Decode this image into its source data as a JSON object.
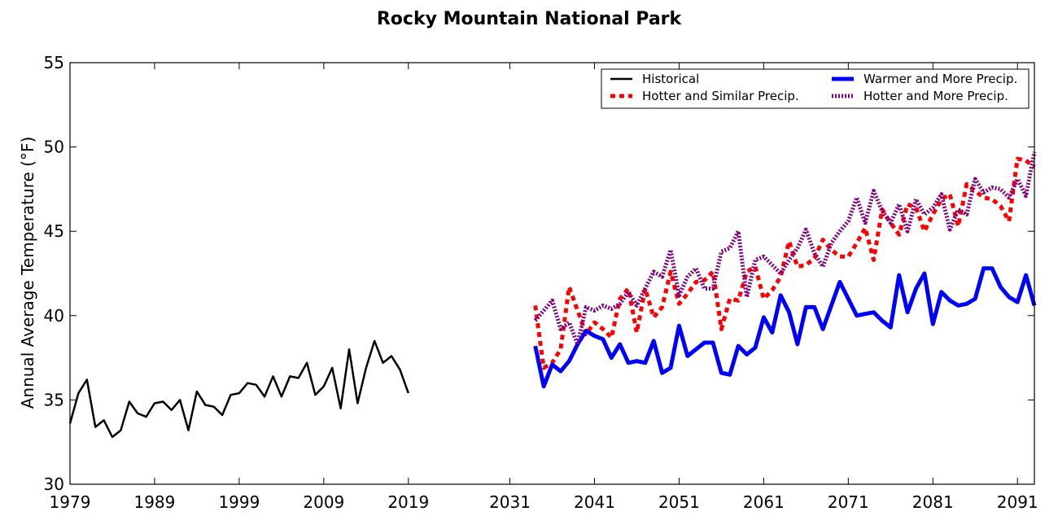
{
  "chart_data": {
    "type": "line",
    "title": "Rocky Mountain National Park",
    "xlabel": "",
    "ylabel": "Annual Average Temperature (°F)",
    "xlim": [
      1979,
      2093
    ],
    "ylim": [
      30,
      55
    ],
    "xticks": [
      1979,
      1989,
      1999,
      2009,
      2019,
      2031,
      2041,
      2051,
      2061,
      2071,
      2081,
      2091
    ],
    "yticks": [
      30,
      35,
      40,
      45,
      50,
      55
    ],
    "grid": false,
    "legend": {
      "position": "top-right",
      "columns": 2
    },
    "series": [
      {
        "name": "Historical",
        "color": "#000000",
        "style": "solid",
        "x": [
          1979,
          1980,
          1981,
          1982,
          1983,
          1984,
          1985,
          1986,
          1987,
          1988,
          1989,
          1990,
          1991,
          1992,
          1993,
          1994,
          1995,
          1996,
          1997,
          1998,
          1999,
          2000,
          2001,
          2002,
          2003,
          2004,
          2005,
          2006,
          2007,
          2008,
          2009,
          2010,
          2011,
          2012,
          2013,
          2014,
          2015,
          2016,
          2017,
          2018,
          2019
        ],
        "y": [
          33.6,
          35.4,
          36.2,
          33.4,
          33.8,
          32.8,
          33.2,
          34.9,
          34.2,
          34.0,
          34.8,
          34.9,
          34.4,
          35.0,
          33.2,
          35.5,
          34.7,
          34.6,
          34.1,
          35.3,
          35.4,
          36.0,
          35.9,
          35.2,
          36.4,
          35.2,
          36.4,
          36.3,
          37.2,
          35.3,
          35.8,
          36.9,
          34.5,
          38.0,
          34.8,
          36.9,
          38.5,
          37.2,
          37.6,
          36.8,
          35.4
        ]
      },
      {
        "name": "Hotter and Similar Precip.",
        "color": "#ff0000",
        "style": "dotted",
        "x": [
          2034,
          2035,
          2036,
          2037,
          2038,
          2039,
          2040,
          2041,
          2042,
          2043,
          2044,
          2045,
          2046,
          2047,
          2048,
          2049,
          2050,
          2051,
          2052,
          2053,
          2054,
          2055,
          2056,
          2057,
          2058,
          2059,
          2060,
          2061,
          2062,
          2063,
          2064,
          2065,
          2066,
          2067,
          2068,
          2069,
          2070,
          2071,
          2072,
          2073,
          2074,
          2075,
          2076,
          2077,
          2078,
          2079,
          2080,
          2081,
          2082,
          2083,
          2084,
          2085,
          2086,
          2087,
          2088,
          2089,
          2090,
          2091,
          2092,
          2093
        ],
        "y": [
          40.6,
          36.9,
          37.2,
          38.0,
          41.7,
          40.3,
          38.9,
          39.6,
          39.2,
          38.7,
          41.0,
          41.6,
          39.0,
          41.6,
          39.9,
          40.5,
          42.6,
          40.7,
          41.3,
          42.0,
          42.1,
          42.6,
          39.2,
          41.0,
          40.9,
          42.6,
          42.9,
          41.0,
          41.5,
          42.3,
          44.4,
          42.9,
          43.0,
          43.4,
          44.5,
          43.9,
          43.5,
          43.5,
          44.3,
          45.2,
          43.3,
          46.3,
          45.5,
          44.8,
          46.6,
          46.4,
          45.0,
          46.0,
          46.9,
          47.2,
          45.3,
          47.8,
          47.4,
          47.0,
          46.9,
          46.5,
          45.6,
          49.3,
          49.2,
          48.8
        ]
      },
      {
        "name": "Warmer and More Precip.",
        "color": "#0000ff",
        "style": "solid-thick",
        "x": [
          2034,
          2035,
          2036,
          2037,
          2038,
          2039,
          2040,
          2041,
          2042,
          2043,
          2044,
          2045,
          2046,
          2047,
          2048,
          2049,
          2050,
          2051,
          2052,
          2053,
          2054,
          2055,
          2056,
          2057,
          2058,
          2059,
          2060,
          2061,
          2062,
          2063,
          2064,
          2065,
          2066,
          2067,
          2068,
          2069,
          2070,
          2071,
          2072,
          2073,
          2074,
          2075,
          2076,
          2077,
          2078,
          2079,
          2080,
          2081,
          2082,
          2083,
          2084,
          2085,
          2086,
          2087,
          2088,
          2089,
          2090,
          2091,
          2092,
          2093
        ],
        "y": [
          38.2,
          35.8,
          37.1,
          36.7,
          37.3,
          38.3,
          39.1,
          38.8,
          38.6,
          37.5,
          38.3,
          37.2,
          37.3,
          37.2,
          38.5,
          36.6,
          36.9,
          39.4,
          37.6,
          38.0,
          38.4,
          38.4,
          36.6,
          36.5,
          38.2,
          37.7,
          38.1,
          39.9,
          39.0,
          41.2,
          40.2,
          38.3,
          40.5,
          40.5,
          39.2,
          40.6,
          42.0,
          41.0,
          40.0,
          40.1,
          40.2,
          39.7,
          39.3,
          42.4,
          40.2,
          41.6,
          42.5,
          39.5,
          41.4,
          40.9,
          40.6,
          40.7,
          41.0,
          42.8,
          42.8,
          41.7,
          41.1,
          40.8,
          42.4,
          40.6
        ]
      },
      {
        "name": "Hotter and More Precip.",
        "color": "#800080",
        "style": "dashed-thick",
        "x": [
          2034,
          2035,
          2036,
          2037,
          2038,
          2039,
          2040,
          2041,
          2042,
          2043,
          2044,
          2045,
          2046,
          2047,
          2048,
          2049,
          2050,
          2051,
          2052,
          2053,
          2054,
          2055,
          2056,
          2057,
          2058,
          2059,
          2060,
          2061,
          2062,
          2063,
          2064,
          2065,
          2066,
          2067,
          2068,
          2069,
          2070,
          2071,
          2072,
          2073,
          2074,
          2075,
          2076,
          2077,
          2078,
          2079,
          2080,
          2081,
          2082,
          2083,
          2084,
          2085,
          2086,
          2087,
          2088,
          2089,
          2090,
          2091,
          2092,
          2093
        ],
        "y": [
          39.7,
          40.3,
          40.9,
          39.2,
          39.6,
          38.3,
          40.5,
          40.3,
          40.6,
          40.4,
          40.7,
          41.4,
          40.6,
          41.6,
          42.6,
          42.3,
          43.9,
          41.2,
          42.3,
          42.8,
          41.6,
          41.6,
          43.8,
          44.0,
          45.0,
          41.1,
          43.3,
          43.5,
          43.0,
          42.5,
          43.3,
          44.0,
          45.1,
          43.7,
          42.9,
          44.3,
          45.0,
          45.6,
          47.0,
          45.5,
          47.4,
          46.2,
          45.5,
          46.6,
          45.0,
          46.9,
          46.0,
          46.4,
          47.2,
          45.1,
          46.3,
          46.0,
          48.1,
          47.3,
          47.6,
          47.5,
          47.0,
          48.1,
          47.1,
          49.7
        ]
      }
    ]
  }
}
